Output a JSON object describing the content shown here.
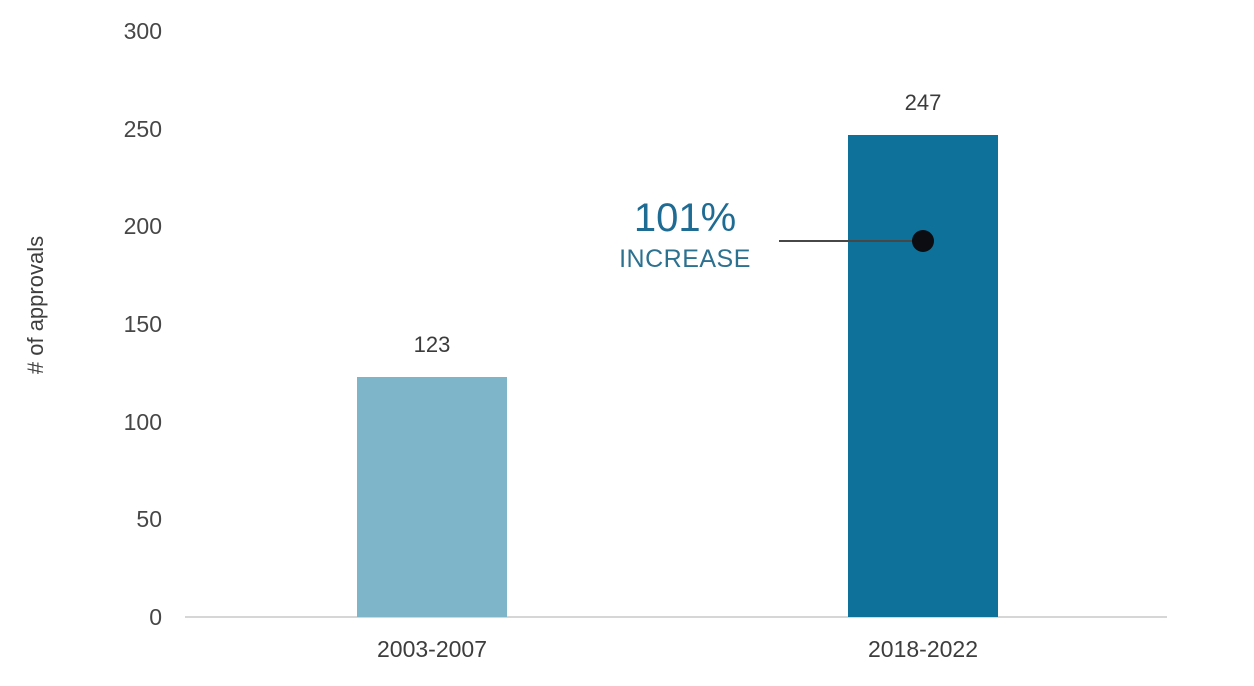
{
  "chart_data": {
    "type": "bar",
    "title": "",
    "categories": [
      "2003-2007",
      "2018-2022"
    ],
    "values": [
      123,
      247
    ],
    "data_labels": [
      "123",
      "247"
    ],
    "bar_colors": [
      "#7fb5c9",
      "#0e7199"
    ],
    "xlabel": "",
    "ylabel": "# of approvals",
    "ylim": [
      0,
      300
    ],
    "yticks": [
      0,
      50,
      100,
      150,
      200,
      250,
      300
    ],
    "grid": "off",
    "legend": "none",
    "annotation": {
      "percent": "101%",
      "word": "INCREASE",
      "percent_color": "#1e6b94",
      "word_color": "#2d7190",
      "marker": "black-dot",
      "points_to": "2018-2022 bar"
    }
  }
}
